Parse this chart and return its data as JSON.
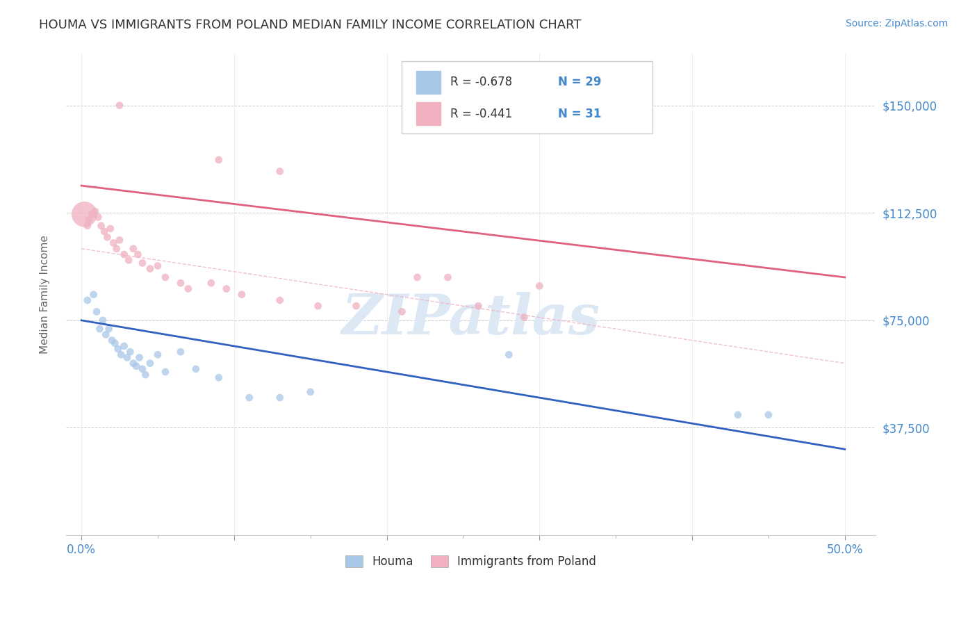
{
  "title": "HOUMA VS IMMIGRANTS FROM POLAND MEDIAN FAMILY INCOME CORRELATION CHART",
  "source_text": "Source: ZipAtlas.com",
  "ylabel": "Median Family Income",
  "x_ticks": [
    0.0,
    10.0,
    20.0,
    30.0,
    40.0,
    50.0
  ],
  "x_tick_labels_show": [
    "0.0%",
    "",
    "",
    "",
    "",
    "50.0%"
  ],
  "y_ticks": [
    0,
    37500,
    75000,
    112500,
    150000
  ],
  "y_tick_labels": [
    "",
    "$37,500",
    "$75,000",
    "$112,500",
    "$150,000"
  ],
  "xlim": [
    -1.0,
    52
  ],
  "ylim": [
    10000,
    168000
  ],
  "legend_blue_r": "R = -0.678",
  "legend_blue_n": "N = 29",
  "legend_pink_r": "R = -0.441",
  "legend_pink_n": "N = 31",
  "legend_label_blue": "Houma",
  "legend_label_pink": "Immigrants from Poland",
  "blue_color": "#a8c8e8",
  "pink_color": "#f0b0c0",
  "trend_blue": "#3060c0",
  "trend_pink": "#e06080",
  "dash_color": "#f0b0c0",
  "watermark": "ZIPatlas",
  "watermark_color": "#dde8f5",
  "grid_color": "#cccccc",
  "title_color": "#333333",
  "source_color": "#4488cc",
  "right_tick_color": "#4488cc",
  "legend_r_color": "#333333",
  "legend_n_color": "#4488cc",
  "blue_trend_x0": 0,
  "blue_trend_y0": 75000,
  "blue_trend_x1": 50,
  "blue_trend_y1": 30000,
  "pink_trend_x0": 0,
  "pink_trend_y0": 122000,
  "pink_trend_x1": 50,
  "pink_trend_y1": 90000,
  "dash_trend_x0": 0,
  "dash_trend_x1": 50,
  "dash_trend_y0": 100000,
  "dash_trend_y1": 60000,
  "blue_points_x": [
    0.4,
    0.8,
    1.0,
    1.2,
    1.4,
    1.6,
    1.8,
    2.0,
    2.2,
    2.4,
    2.6,
    2.8,
    3.0,
    3.2,
    3.4,
    3.6,
    3.8,
    4.0,
    4.2,
    4.5,
    5.0,
    5.5,
    6.5,
    7.5,
    9.0,
    11.0,
    28.0,
    43.0,
    45.0
  ],
  "blue_points_y": [
    82000,
    84000,
    78000,
    72000,
    75000,
    70000,
    72000,
    68000,
    67000,
    65000,
    63000,
    66000,
    62000,
    64000,
    60000,
    59000,
    62000,
    58000,
    56000,
    60000,
    63000,
    57000,
    64000,
    58000,
    55000,
    48000,
    63000,
    42000,
    42000
  ],
  "blue_points_size": [
    60,
    60,
    60,
    60,
    60,
    60,
    60,
    60,
    60,
    60,
    60,
    60,
    60,
    60,
    60,
    60,
    60,
    60,
    60,
    60,
    60,
    60,
    60,
    60,
    60,
    60,
    60,
    60,
    60
  ],
  "pink_points_x": [
    0.4,
    0.5,
    0.7,
    0.9,
    1.1,
    1.3,
    1.5,
    1.7,
    1.9,
    2.1,
    2.3,
    2.5,
    2.8,
    3.1,
    3.4,
    3.7,
    4.0,
    4.5,
    5.0,
    5.5,
    6.5,
    7.0,
    8.5,
    9.5,
    10.5,
    13.0,
    15.5,
    18.0,
    21.0,
    26.0,
    29.0
  ],
  "pink_points_y": [
    108000,
    110000,
    112000,
    113000,
    111000,
    108000,
    106000,
    104000,
    107000,
    102000,
    100000,
    103000,
    98000,
    96000,
    100000,
    98000,
    95000,
    93000,
    94000,
    90000,
    88000,
    86000,
    88000,
    86000,
    84000,
    82000,
    80000,
    80000,
    78000,
    80000,
    76000
  ],
  "pink_points_size": [
    60,
    60,
    60,
    60,
    60,
    60,
    60,
    60,
    60,
    60,
    60,
    60,
    60,
    60,
    60,
    60,
    60,
    60,
    60,
    60,
    60,
    60,
    60,
    60,
    60,
    60,
    60,
    60,
    60,
    60,
    60
  ],
  "pink_large_x": 0.2,
  "pink_large_y": 112000,
  "pink_large_size": 700,
  "pink_outlier1_x": 2.5,
  "pink_outlier1_y": 150000,
  "pink_outlier2_x": 9.0,
  "pink_outlier2_y": 131000,
  "pink_outlier3_x": 13.0,
  "pink_outlier3_y": 127000,
  "pink_outlier4_x": 22.0,
  "pink_outlier4_y": 90000,
  "pink_outlier5_x": 24.0,
  "pink_outlier5_y": 90000,
  "pink_outlier6_x": 30.0,
  "pink_outlier6_y": 87000,
  "blue_extra1_x": 13.0,
  "blue_extra1_y": 48000,
  "blue_extra2_x": 15.0,
  "blue_extra2_y": 50000
}
